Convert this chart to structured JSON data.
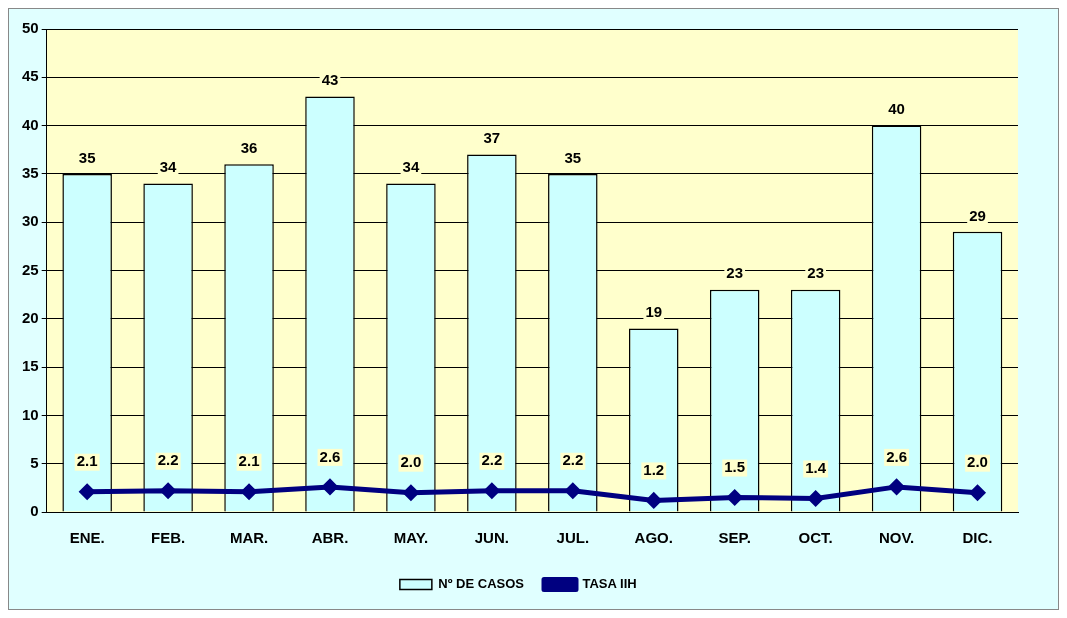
{
  "chart_data": {
    "type": "bar",
    "categories": [
      "ENE.",
      "FEB.",
      "MAR.",
      "ABR.",
      "MAY.",
      "JUN.",
      "JUL.",
      "AGO.",
      "SEP.",
      "OCT.",
      "NOV.",
      "DIC."
    ],
    "series": [
      {
        "name": "Nº DE CASOS",
        "color": "#ccffff",
        "values": [
          35,
          34,
          36,
          43,
          34,
          37,
          35,
          19,
          23,
          23,
          40,
          29
        ]
      },
      {
        "name": "TASA IIH",
        "type": "line",
        "color": "#000080",
        "values": [
          2.1,
          2.2,
          2.1,
          2.6,
          2.0,
          2.2,
          2.2,
          1.2,
          1.5,
          1.4,
          2.6,
          2.0
        ],
        "value_labels": [
          "2.1",
          "2.2",
          "2.1",
          "2.6",
          "2.0",
          "2.2",
          "2.2",
          "1.2",
          "1.5",
          "1.4",
          "2.6",
          "2.0"
        ],
        "marker": "diamond"
      }
    ],
    "ylim": [
      0,
      50
    ],
    "yticks": [
      0,
      5,
      10,
      15,
      20,
      25,
      30,
      35,
      40,
      45,
      50
    ],
    "grid": "y",
    "legend": "bottom",
    "data_labels": true
  }
}
